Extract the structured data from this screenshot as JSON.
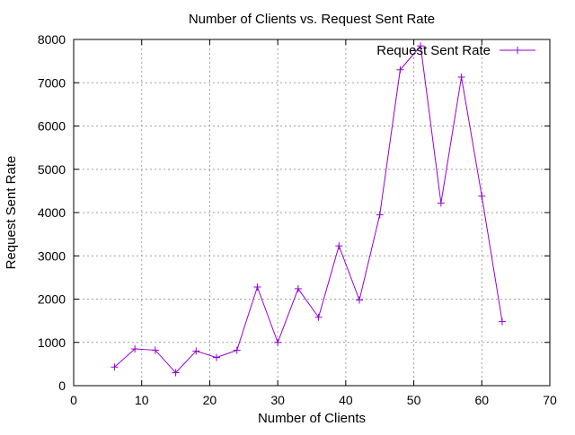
{
  "chart_data": {
    "type": "line",
    "title": "Number of Clients vs. Request Sent Rate",
    "xlabel": "Number of Clients",
    "ylabel": "Request Sent Rate",
    "xlim": [
      0,
      70
    ],
    "ylim": [
      0,
      8000
    ],
    "xticks": [
      0,
      10,
      20,
      30,
      40,
      50,
      60,
      70
    ],
    "yticks": [
      0,
      1000,
      2000,
      3000,
      4000,
      5000,
      6000,
      7000,
      8000
    ],
    "grid": true,
    "legend_position": "top-right",
    "series": [
      {
        "name": "Request Sent Rate",
        "color": "#9400d3",
        "marker": "plus",
        "x": [
          6,
          9,
          12,
          15,
          18,
          21,
          24,
          27,
          30,
          33,
          36,
          39,
          42,
          45,
          48,
          51,
          54,
          57,
          60,
          63
        ],
        "y": [
          430,
          850,
          820,
          300,
          800,
          650,
          820,
          2280,
          1000,
          2240,
          1580,
          3230,
          1980,
          3950,
          7300,
          7850,
          4220,
          7130,
          4380,
          1480
        ]
      }
    ]
  }
}
